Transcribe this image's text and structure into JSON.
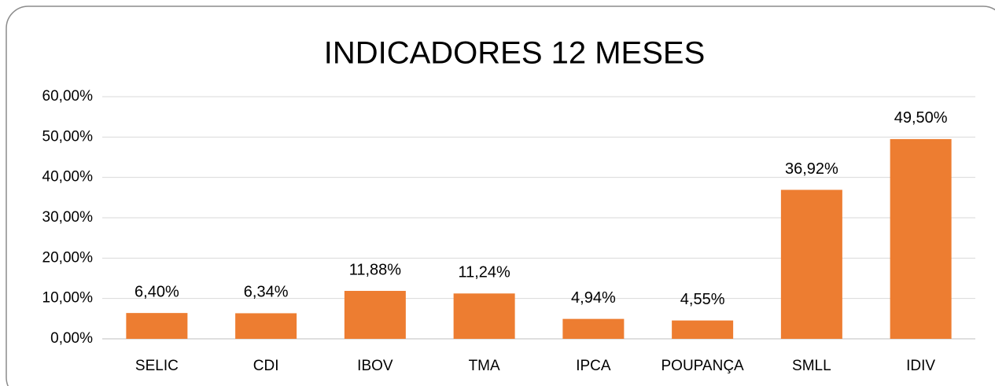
{
  "chart_data": {
    "type": "bar",
    "title": "INDICADORES 12 MESES",
    "categories": [
      "SELIC",
      "CDI",
      "IBOV",
      "TMA",
      "IPCA",
      "POUPANÇA",
      "SMLL",
      "IDIV"
    ],
    "values": [
      6.4,
      6.34,
      11.88,
      11.24,
      4.94,
      4.55,
      36.92,
      49.5
    ],
    "value_labels": [
      "6,40%",
      "6,34%",
      "11,88%",
      "11,24%",
      "4,94%",
      "4,55%",
      "36,92%",
      "49,50%"
    ],
    "color": "#ed7d31",
    "ylim": [
      0,
      60
    ],
    "yticks": [
      {
        "value": 0,
        "label": "0,00%"
      },
      {
        "value": 10,
        "label": "10,00%"
      },
      {
        "value": 20,
        "label": "20,00%"
      },
      {
        "value": 30,
        "label": "30,00%"
      },
      {
        "value": 40,
        "label": "40,00%"
      },
      {
        "value": 50,
        "label": "50,00%"
      },
      {
        "value": 60,
        "label": "60,00%"
      }
    ],
    "grid": true
  }
}
